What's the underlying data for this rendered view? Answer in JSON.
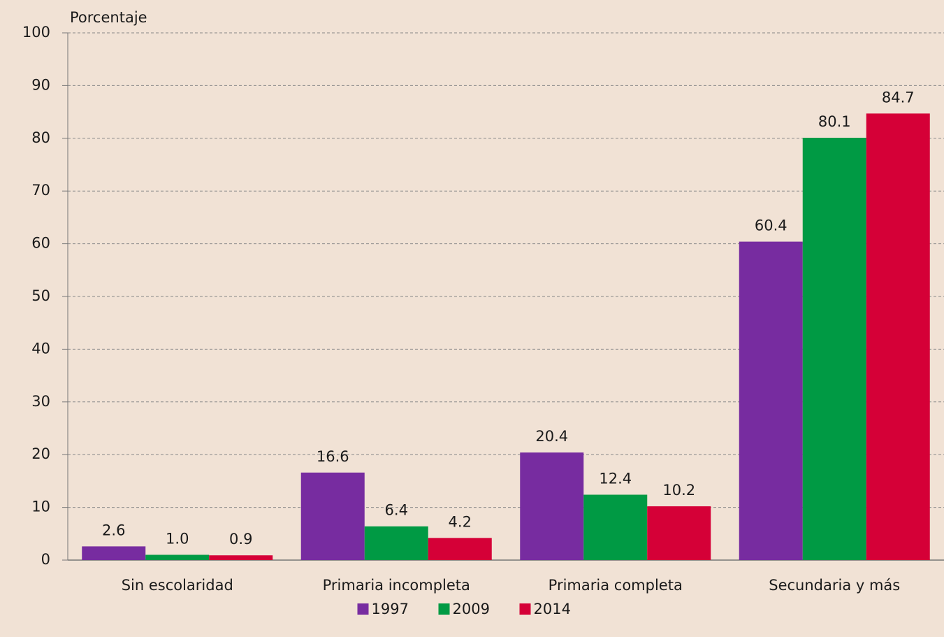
{
  "chart_data": {
    "type": "bar",
    "y_label": "Porcentaje",
    "categories": [
      "Sin escolaridad",
      "Primaria incompleta",
      "Primaria completa",
      "Secundaria y más"
    ],
    "series": [
      {
        "name": "1997",
        "color": "#772ca0",
        "values": [
          2.6,
          16.6,
          20.4,
          60.4
        ],
        "value_labels": [
          "2.6",
          "16.6",
          "20.4",
          "60.4"
        ]
      },
      {
        "name": "2009",
        "color": "#009a44",
        "values": [
          1.0,
          6.4,
          12.4,
          80.1
        ],
        "value_labels": [
          "1.0",
          "6.4",
          "12.4",
          "80.1"
        ]
      },
      {
        "name": "2014",
        "color": "#d50037",
        "values": [
          0.9,
          4.2,
          10.2,
          84.7
        ],
        "value_labels": [
          "0.9",
          "4.2",
          "10.2",
          "84.7"
        ]
      }
    ],
    "ylim": [
      0,
      100
    ],
    "yticks": [
      0,
      10,
      20,
      30,
      40,
      50,
      60,
      70,
      80,
      90,
      100
    ],
    "grid": true,
    "legend": "bottom"
  }
}
